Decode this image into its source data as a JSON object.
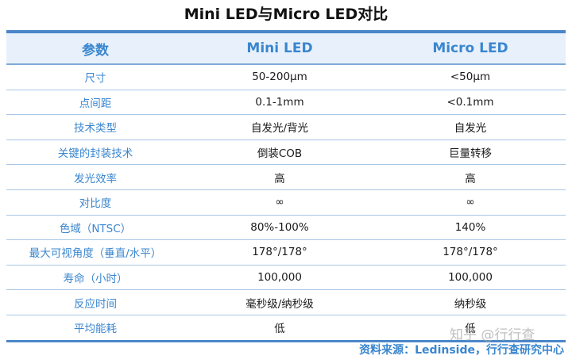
{
  "title": "Mini LED与Micro LED对比",
  "table": {
    "headers": [
      "参数",
      "Mini LED",
      "Micro LED"
    ],
    "rows": [
      [
        "尺寸",
        "50-200μm",
        "<50μm"
      ],
      [
        "点间距",
        "0.1-1mm",
        "<0.1mm"
      ],
      [
        "技术类型",
        "自发光/背光",
        "自发光"
      ],
      [
        "关键的封装技术",
        "倒装COB",
        "巨量转移"
      ],
      [
        "发光效率",
        "高",
        "高"
      ],
      [
        "对比度",
        "∞",
        "∞"
      ],
      [
        "色域（NTSC）",
        "80%-100%",
        "140%"
      ],
      [
        "最大可视角度（垂直/水平）",
        "178°/178°",
        "178°/178°"
      ],
      [
        "寿命（小时）",
        "100,000",
        "100,000"
      ],
      [
        "反应时间",
        "毫秒级/纳秒级",
        "纳秒级"
      ],
      [
        "平均能耗",
        "低",
        "低"
      ]
    ]
  },
  "source": "资料来源：Ledinside，行行查研究中心",
  "watermark": "知乎 @行行查",
  "colors": {
    "accent": "#3a86cf",
    "header_bg": "#e8f1fb",
    "rule": "#4a86c8"
  }
}
